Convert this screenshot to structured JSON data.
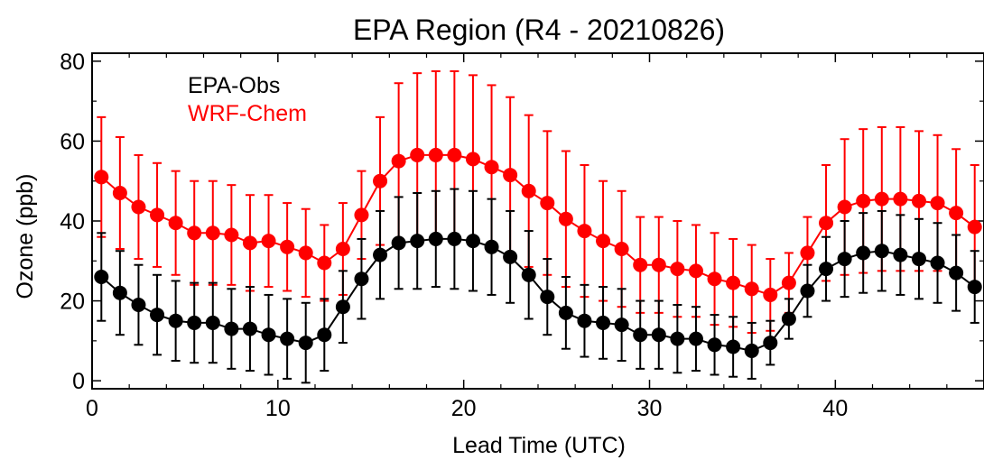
{
  "chart_data": {
    "type": "line",
    "title": "EPA Region (R4 - 20210826)",
    "xlabel": "Lead Time (UTC)",
    "ylabel": "Ozone (ppb)",
    "xlim": [
      0,
      48
    ],
    "ylim": [
      -2,
      82
    ],
    "xticks": [
      0,
      10,
      20,
      30,
      40
    ],
    "yticks": [
      0,
      20,
      40,
      60,
      80
    ],
    "x": [
      0.5,
      1.5,
      2.5,
      3.5,
      4.5,
      5.5,
      6.5,
      7.5,
      8.5,
      9.5,
      10.5,
      11.5,
      12.5,
      13.5,
      14.5,
      15.5,
      16.5,
      17.5,
      18.5,
      19.5,
      20.5,
      21.5,
      22.5,
      23.5,
      24.5,
      25.5,
      26.5,
      27.5,
      28.5,
      29.5,
      30.5,
      31.5,
      32.5,
      33.5,
      34.5,
      35.5,
      36.5,
      37.5,
      38.5,
      39.5,
      40.5,
      41.5,
      42.5,
      43.5,
      44.5,
      45.5,
      46.5,
      47.5
    ],
    "legend_position": "top-left",
    "series": [
      {
        "name": "EPA-Obs",
        "color": "#000000",
        "values": [
          26,
          22,
          19,
          16.5,
          15,
          14.5,
          14.5,
          13,
          13,
          11.5,
          10.5,
          9.5,
          11.5,
          18.5,
          25.5,
          31.5,
          34.5,
          35,
          35.5,
          35.5,
          35,
          33.5,
          31,
          26.5,
          21,
          17,
          15,
          14.5,
          14,
          11.5,
          11.5,
          10.5,
          10.5,
          9,
          8.5,
          7.5,
          9.5,
          15.5,
          22.5,
          28,
          30.5,
          32,
          32.5,
          31.5,
          30.5,
          29.5,
          27,
          23.5
        ],
        "errors": [
          11,
          10.5,
          10,
          10,
          10,
          10,
          10,
          10,
          10.5,
          10,
          10,
          10,
          9,
          9,
          10,
          11,
          11.5,
          12,
          12,
          12.5,
          12.5,
          12,
          11.5,
          11,
          9.5,
          9,
          9,
          9,
          9,
          8.5,
          8.5,
          8.5,
          8,
          7.5,
          7.5,
          7,
          5.5,
          5,
          6.5,
          8,
          9.5,
          10,
          10,
          10,
          10,
          10,
          9.5,
          9
        ]
      },
      {
        "name": "WRF-Chem",
        "color": "#ff0000",
        "values": [
          51,
          47,
          43.5,
          41.5,
          39.5,
          37,
          37,
          36.5,
          34.5,
          35,
          33.5,
          32,
          29.5,
          33,
          41.5,
          50,
          55,
          56.5,
          56.5,
          56.5,
          55.5,
          53.5,
          51.5,
          47.5,
          44.5,
          40.5,
          37.5,
          35,
          33,
          29,
          29,
          28,
          27.5,
          25.5,
          24.5,
          23,
          21.5,
          24.5,
          32,
          39.5,
          43.5,
          45,
          45.5,
          45.5,
          45,
          44.5,
          42,
          38.5
        ],
        "errors": [
          15,
          14,
          13,
          13,
          13,
          13,
          13,
          12.5,
          12,
          11.5,
          11,
          11,
          9.5,
          11.5,
          11,
          16,
          19.5,
          20.5,
          21,
          21,
          21,
          20.5,
          19.5,
          19,
          18,
          17,
          16.5,
          15,
          14.5,
          12,
          12,
          12,
          11.5,
          11.5,
          11,
          11,
          9,
          7.5,
          9,
          14.5,
          17,
          18,
          18,
          18,
          17.5,
          17,
          16,
          15.5
        ]
      }
    ]
  }
}
